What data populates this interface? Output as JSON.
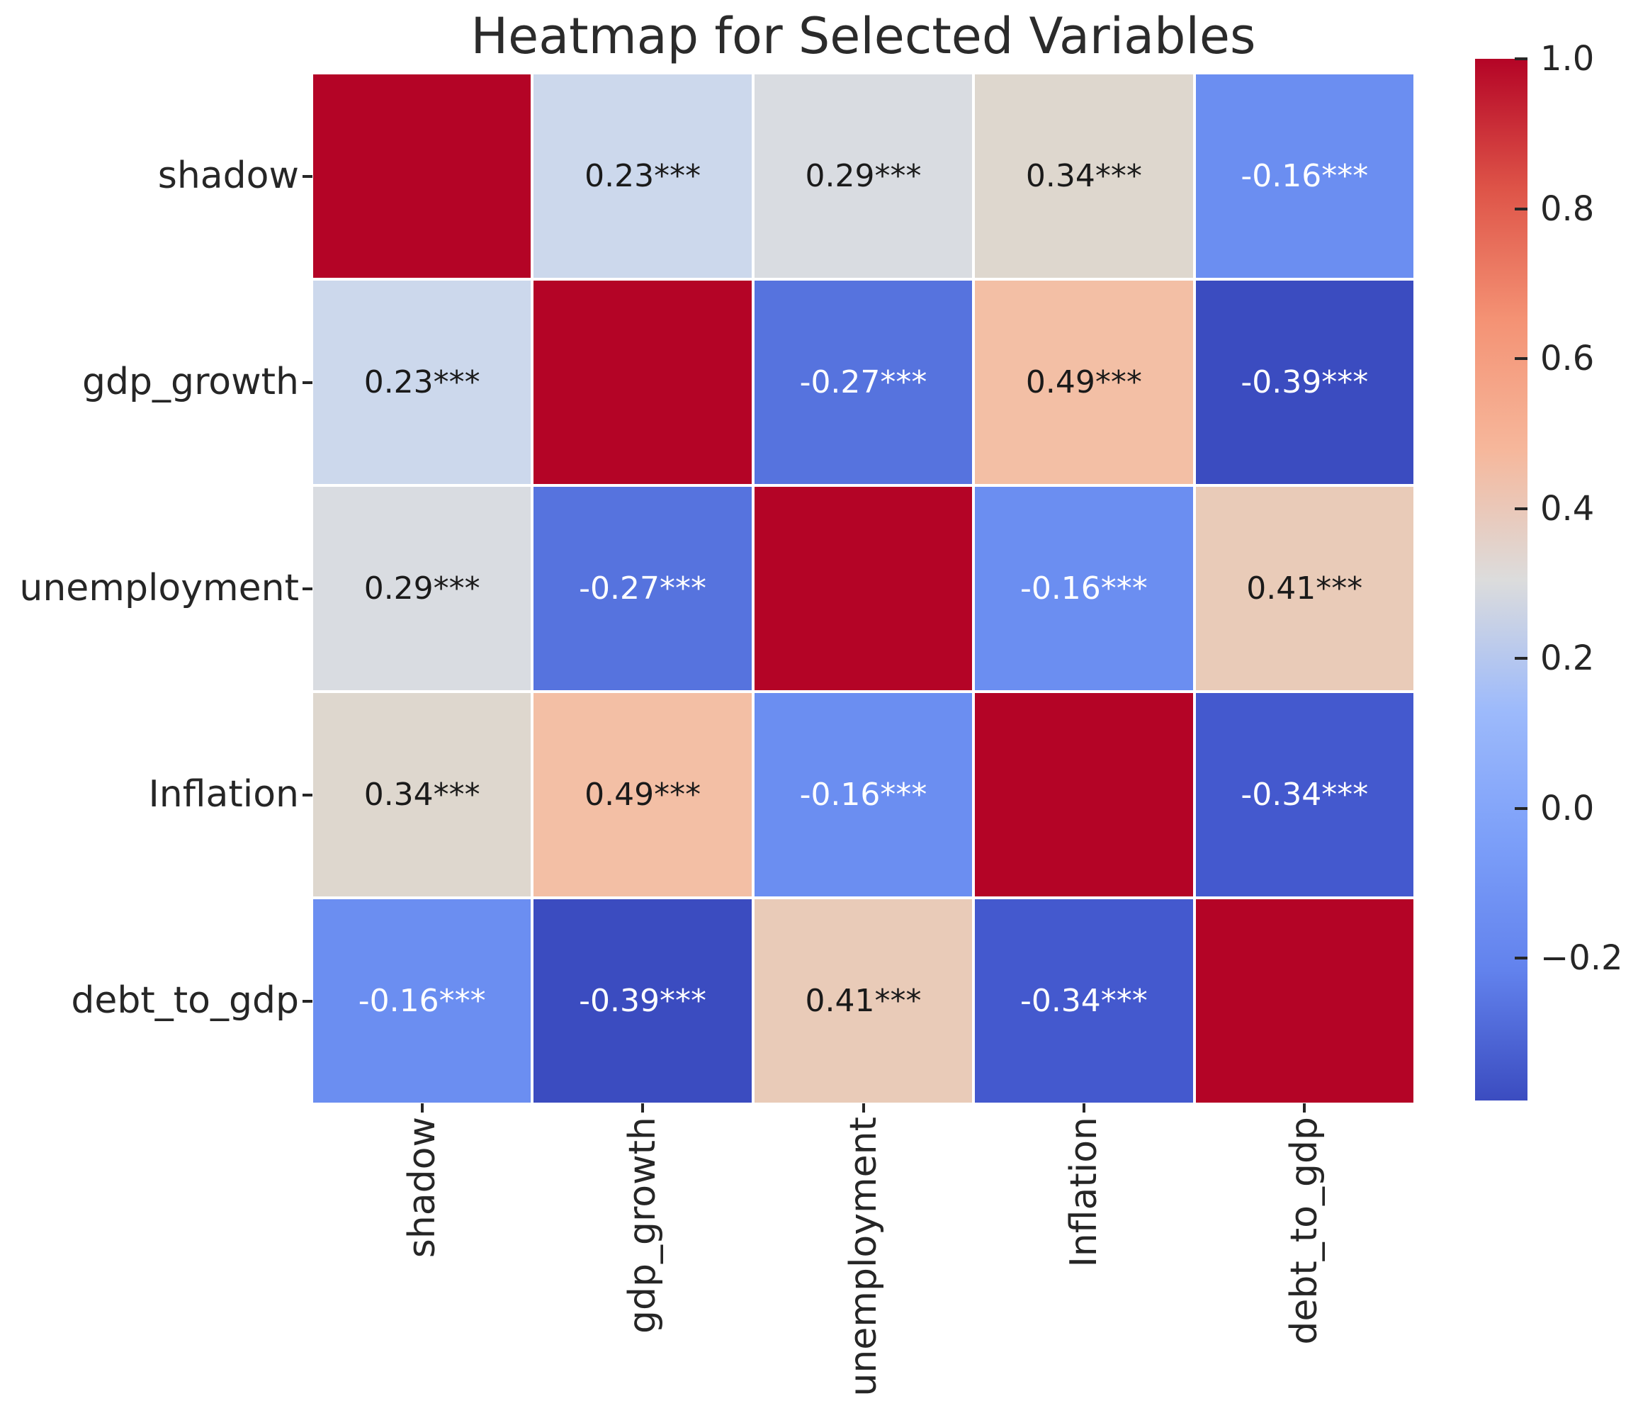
{
  "chart_data": {
    "type": "heatmap",
    "title": "Heatmap for Selected Variables",
    "variables": [
      "shadow",
      "gdp_growth",
      "unemployment",
      "Inflation",
      "debt_to_gdp"
    ],
    "matrix": [
      [
        1.0,
        0.23,
        0.29,
        0.34,
        -0.16
      ],
      [
        0.23,
        1.0,
        -0.27,
        0.49,
        -0.39
      ],
      [
        0.29,
        -0.27,
        1.0,
        -0.16,
        0.41
      ],
      [
        0.34,
        0.49,
        -0.16,
        1.0,
        -0.34
      ],
      [
        -0.16,
        -0.39,
        0.41,
        -0.34,
        1.0
      ]
    ],
    "annotations": [
      [
        "",
        "0.23***",
        "0.29***",
        "0.34***",
        "-0.16***"
      ],
      [
        "0.23***",
        "",
        "-0.27***",
        "0.49***",
        "-0.39***"
      ],
      [
        "0.29***",
        "-0.27***",
        "",
        "-0.16***",
        "0.41***"
      ],
      [
        "0.34***",
        "0.49***",
        "-0.16***",
        "",
        "-0.34***"
      ],
      [
        "-0.16***",
        "-0.39***",
        "0.41***",
        "-0.34***",
        ""
      ]
    ],
    "cell_colors": [
      [
        "#b40426",
        "#ccd8ec",
        "#d9dce1",
        "#ded7ce",
        "#6b8ef1"
      ],
      [
        "#ccd8ec",
        "#b40426",
        "#5673de",
        "#f3bfa5",
        "#3b4cc0"
      ],
      [
        "#d9dce1",
        "#5673de",
        "#b40426",
        "#6b8ef1",
        "#e9cbb8"
      ],
      [
        "#ded7ce",
        "#f3bfa5",
        "#6b8ef1",
        "#b40426",
        "#4459ce"
      ],
      [
        "#6b8ef1",
        "#3b4cc0",
        "#e9cbb8",
        "#4459ce",
        "#b40426"
      ]
    ],
    "annotation_text_colors": [
      [
        "",
        "#1a1a1a",
        "#1a1a1a",
        "#1a1a1a",
        "#ffffff"
      ],
      [
        "#1a1a1a",
        "",
        "#ffffff",
        "#1a1a1a",
        "#ffffff"
      ],
      [
        "#1a1a1a",
        "#ffffff",
        "",
        "#ffffff",
        "#1a1a1a"
      ],
      [
        "#1a1a1a",
        "#1a1a1a",
        "#ffffff",
        "",
        "#ffffff"
      ],
      [
        "#ffffff",
        "#ffffff",
        "#1a1a1a",
        "#ffffff",
        ""
      ]
    ],
    "colorbar": {
      "vmin": -0.39,
      "vmax": 1.0,
      "tick_values": [
        1.0,
        0.8,
        0.6,
        0.4,
        0.2,
        0.0,
        -0.2
      ],
      "tick_labels": [
        "1.0",
        "0.8",
        "0.6",
        "0.4",
        "0.2",
        "0.0",
        "−0.2"
      ],
      "gradient_stops": [
        {
          "pos": 0,
          "color": "#b40426"
        },
        {
          "pos": 12.5,
          "color": "#de5448"
        },
        {
          "pos": 25,
          "color": "#f49274"
        },
        {
          "pos": 37.5,
          "color": "#f6b79b"
        },
        {
          "pos": 50,
          "color": "#dcdcdc"
        },
        {
          "pos": 62.5,
          "color": "#9dbafb"
        },
        {
          "pos": 75,
          "color": "#7c9ff9"
        },
        {
          "pos": 87.5,
          "color": "#6282ed"
        },
        {
          "pos": 100,
          "color": "#3b4cc0"
        }
      ]
    },
    "layout_hints": {
      "colormap": "coolwarm",
      "legend_position": "right-colorbar",
      "grid_gap_color": "#ffffff",
      "x_tick_rotation": 90
    }
  },
  "colors": {
    "background": "#ffffff",
    "text": "#262626",
    "title_text": "#2b2b2b"
  }
}
